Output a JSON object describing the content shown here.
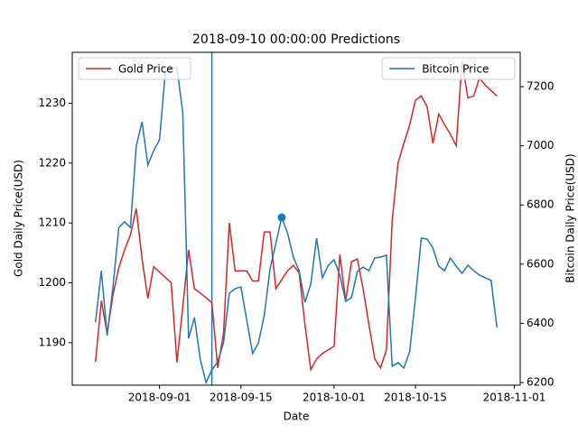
{
  "chart_data": {
    "type": "line",
    "title": "2018-09-10 00:00:00 Predictions",
    "x_label": "Date",
    "y_label": "Gold Daily Price(USD)",
    "y2_label": "Bitcoin Daily Price(USD)",
    "x": [
      "2018-08-21",
      "2018-08-22",
      "2018-08-23",
      "2018-08-24",
      "2018-08-25",
      "2018-08-26",
      "2018-08-27",
      "2018-08-28",
      "2018-08-29",
      "2018-08-30",
      "2018-08-31",
      "2018-09-01",
      "2018-09-02",
      "2018-09-03",
      "2018-09-04",
      "2018-09-05",
      "2018-09-06",
      "2018-09-07",
      "2018-09-08",
      "2018-09-09",
      "2018-09-10",
      "2018-09-11",
      "2018-09-12",
      "2018-09-13",
      "2018-09-14",
      "2018-09-15",
      "2018-09-16",
      "2018-09-17",
      "2018-09-18",
      "2018-09-19",
      "2018-09-20",
      "2018-09-21",
      "2018-09-22",
      "2018-09-23",
      "2018-09-24",
      "2018-09-25",
      "2018-09-26",
      "2018-09-27",
      "2018-09-28",
      "2018-09-29",
      "2018-09-30",
      "2018-10-01",
      "2018-10-02",
      "2018-10-03",
      "2018-10-04",
      "2018-10-05",
      "2018-10-06",
      "2018-10-07",
      "2018-10-08",
      "2018-10-09",
      "2018-10-10",
      "2018-10-11",
      "2018-10-12",
      "2018-10-13",
      "2018-10-14",
      "2018-10-15",
      "2018-10-16",
      "2018-10-17",
      "2018-10-18",
      "2018-10-19",
      "2018-10-20",
      "2018-10-21",
      "2018-10-22",
      "2018-10-23",
      "2018-10-24",
      "2018-10-25",
      "2018-10-26",
      "2018-10-27",
      "2018-10-28",
      "2018-10-29"
    ],
    "series": [
      {
        "name": "Gold Price",
        "color": "#d62728",
        "axis": "y",
        "legend": "upper left",
        "values": [
          1186.8,
          1197,
          1191.5,
          1198,
          1202.5,
          1205.5,
          1208,
          1212.4,
          1204,
          1197.4,
          1202.7,
          1201.8,
          1200.9,
          1200,
          1186.7,
          1196,
          1205.5,
          1199,
          1198.3,
          1197.5,
          1196.7,
          1185.8,
          1191.5,
          1210,
          1202,
          1202,
          1202,
          1200.3,
          1200.3,
          1208.5,
          1208.5,
          1199,
          1200.5,
          1202,
          1202.9,
          1201.7,
          1193,
          1185.5,
          1187.3,
          1188.2,
          1188.8,
          1189.4,
          1204.7,
          1197,
          1203.5,
          1204,
          1199,
          1193,
          1187.3,
          1185.8,
          1188.8,
          1210.5,
          1220,
          1223.3,
          1226.4,
          1230.5,
          1231.2,
          1229.4,
          1223.3,
          1228.2,
          1226.4,
          1224.8,
          1222.9,
          1237,
          1230.9,
          1231.2,
          1234.2,
          1233,
          1232.1,
          1231.2
        ]
      },
      {
        "name": "Bitcoin Price",
        "color": "#1f77b4",
        "axis": "y2",
        "legend": "upper right",
        "values": [
          6404,
          6578,
          6359,
          6523,
          6724,
          6743,
          6724,
          6999,
          7081,
          6935,
          6984,
          7020,
          7249,
          7264,
          7264,
          7112,
          6349,
          6420,
          6279,
          6200,
          6243,
          6270,
          6334,
          6502,
          6517,
          6523,
          6410,
          6298,
          6334,
          6426,
          6584,
          6670,
          6758,
          6706,
          6624,
          6578,
          6471,
          6532,
          6688,
          6554,
          6596,
          6615,
          6563,
          6474,
          6487,
          6575,
          6590,
          6578,
          6621,
          6624,
          6630,
          6255,
          6267,
          6249,
          6304,
          6487,
          6688,
          6685,
          6654,
          6593,
          6578,
          6621,
          6593,
          6569,
          6596,
          6578,
          6563,
          6554,
          6545,
          6386
        ]
      }
    ],
    "xlim": [
      "2018-08-17",
      "2018-11-02"
    ],
    "xticks": [
      "2018-09-01",
      "2018-09-15",
      "2018-10-01",
      "2018-10-15",
      "2018-11-01"
    ],
    "ylim": [
      1182.9,
      1238.5
    ],
    "yticks": [
      1190,
      1200,
      1210,
      1220,
      1230
    ],
    "y2lim": [
      6191,
      7316
    ],
    "y2ticks": [
      6200,
      6400,
      6600,
      6800,
      7000,
      7200
    ],
    "vline": "2018-09-10",
    "highlight": {
      "x": "2018-09-22",
      "value": 6758
    }
  }
}
